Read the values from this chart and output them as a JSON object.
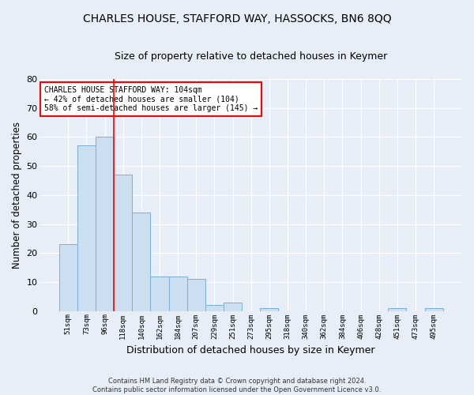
{
  "title": "CHARLES HOUSE, STAFFORD WAY, HASSOCKS, BN6 8QQ",
  "subtitle": "Size of property relative to detached houses in Keymer",
  "xlabel": "Distribution of detached houses by size in Keymer",
  "ylabel": "Number of detached properties",
  "footer_line1": "Contains HM Land Registry data © Crown copyright and database right 2024.",
  "footer_line2": "Contains public sector information licensed under the Open Government Licence v3.0.",
  "bin_labels": [
    "51sqm",
    "73sqm",
    "96sqm",
    "118sqm",
    "140sqm",
    "162sqm",
    "184sqm",
    "207sqm",
    "229sqm",
    "251sqm",
    "273sqm",
    "295sqm",
    "318sqm",
    "340sqm",
    "362sqm",
    "384sqm",
    "406sqm",
    "428sqm",
    "451sqm",
    "473sqm",
    "495sqm"
  ],
  "bar_values": [
    23,
    57,
    60,
    47,
    34,
    12,
    12,
    11,
    2,
    3,
    0,
    1,
    0,
    0,
    0,
    0,
    0,
    0,
    1,
    0,
    1
  ],
  "bar_color": "#ccdff0",
  "bar_edge_color": "#7aafd4",
  "red_line_label": "CHARLES HOUSE STAFFORD WAY: 104sqm",
  "annotation_line2": "← 42% of detached houses are smaller (104)",
  "annotation_line3": "58% of semi-detached houses are larger (145) →",
  "ylim": [
    0,
    80
  ],
  "yticks": [
    0,
    10,
    20,
    30,
    40,
    50,
    60,
    70,
    80
  ],
  "background_color": "#e8eef8",
  "grid_color": "#ffffff",
  "title_fontsize": 10,
  "subtitle_fontsize": 9,
  "ylabel_fontsize": 8.5,
  "xlabel_fontsize": 9
}
